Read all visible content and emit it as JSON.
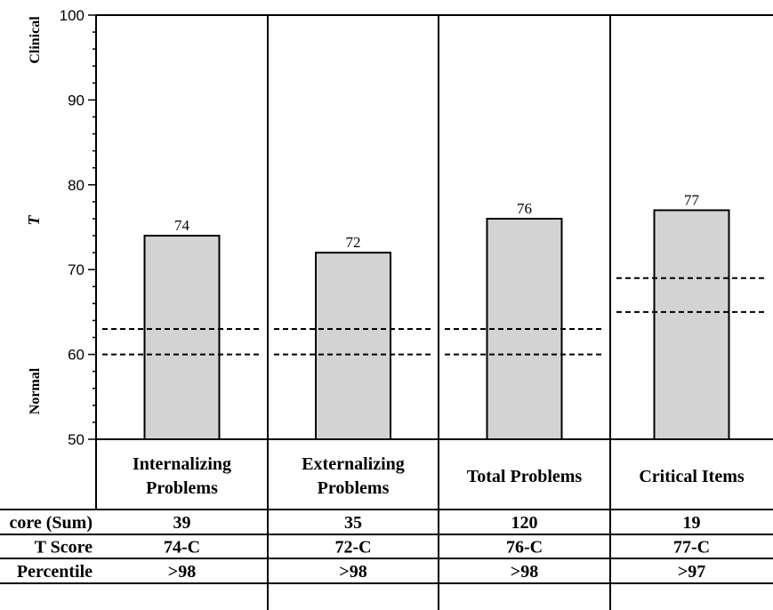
{
  "chart_data": {
    "type": "bar",
    "categories": [
      {
        "line1": "Internalizing",
        "line2": "Problems"
      },
      {
        "line1": "Externalizing",
        "line2": "Problems"
      },
      {
        "line1": "Total Problems",
        "line2": ""
      },
      {
        "line1": "Critical Items",
        "line2": ""
      }
    ],
    "values": [
      74,
      72,
      76,
      77
    ],
    "value_labels": [
      "74",
      "72",
      "76",
      "77"
    ],
    "ylabel": "T",
    "ylim": [
      50,
      100
    ],
    "yticks": [
      50,
      60,
      70,
      80,
      90,
      100
    ],
    "ytick_labels": [
      "50",
      "60",
      "70",
      "80",
      "90",
      "100"
    ],
    "range_labels": {
      "top": "Clinical",
      "bottom": "Normal"
    },
    "thresholds": [
      {
        "lower": 60,
        "upper": 63
      },
      {
        "lower": 60,
        "upper": 63
      },
      {
        "lower": 60,
        "upper": 63
      },
      {
        "lower": 65,
        "upper": 69
      }
    ],
    "bar_color": "#d3d3d3",
    "score_table": {
      "row_labels": [
        "core (Sum)",
        "T Score",
        "Percentile"
      ],
      "rows": [
        [
          "39",
          "35",
          "120",
          "19"
        ],
        [
          "74-C",
          "72-C",
          "76-C",
          "77-C"
        ],
        [
          ">98",
          ">98",
          ">98",
          ">97"
        ]
      ]
    }
  }
}
